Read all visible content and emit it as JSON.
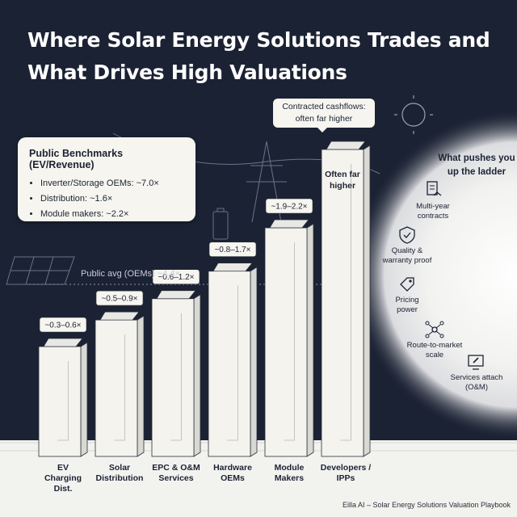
{
  "title": "Where Solar Energy Solutions Trades and What Drives High Valuations",
  "benchmarks": {
    "heading": "Public Benchmarks (EV/Revenue)",
    "items": [
      "Inverter/Storage OEMs: ~7.0×",
      "Distribution: ~1.6×",
      "Module makers: ~2.2×"
    ]
  },
  "callout": {
    "line1": "Contracted cashflows:",
    "line2": "often far higher"
  },
  "public_avg_label": "Public avg (OEMs) ~4.4×",
  "ladder": {
    "title_line1": "What pushes you",
    "title_line2": "up the ladder",
    "drivers": [
      {
        "icon": "handshake-icon",
        "line1": "Multi-year",
        "line2": "contracts"
      },
      {
        "icon": "shield-check-icon",
        "line1": "Quality &",
        "line2": "warranty proof"
      },
      {
        "icon": "price-tag-icon",
        "line1": "Pricing",
        "line2": "power"
      },
      {
        "icon": "network-icon",
        "line1": "Route-to-market",
        "line2": "scale"
      },
      {
        "icon": "wrench-screen-icon",
        "line1": "Services attach",
        "line2": "(O&M)"
      }
    ]
  },
  "footer": "Eilla AI – Solar Energy Solutions Valuation Playbook",
  "chart_data": {
    "type": "bar",
    "title": "Where Solar Energy Solutions Trades and What Drives High Valuations",
    "categories": [
      "EV Charging Dist.",
      "Solar Distribution",
      "EPC & O&M Services",
      "Hardware OEMs",
      "Module Makers",
      "Developers / IPPs"
    ],
    "ranges": [
      [
        0.3,
        0.6
      ],
      [
        0.5,
        0.9
      ],
      [
        0.6,
        1.2
      ],
      [
        0.8,
        1.7
      ],
      [
        1.9,
        2.2
      ],
      [
        null,
        null
      ]
    ],
    "range_labels": [
      "~0.3–0.6×",
      "~0.5–0.9×",
      "~0.6–1.2×",
      "~0.8–1.7×",
      "~1.9–2.2×",
      "Often far higher"
    ],
    "reference_line": {
      "label": "Public avg (OEMs) ~4.4×",
      "value": 4.4
    },
    "colors": {
      "background": "#1b2233",
      "building": "#f4f3ee",
      "label": "#f6f5ef",
      "text": "#1b2233"
    }
  }
}
